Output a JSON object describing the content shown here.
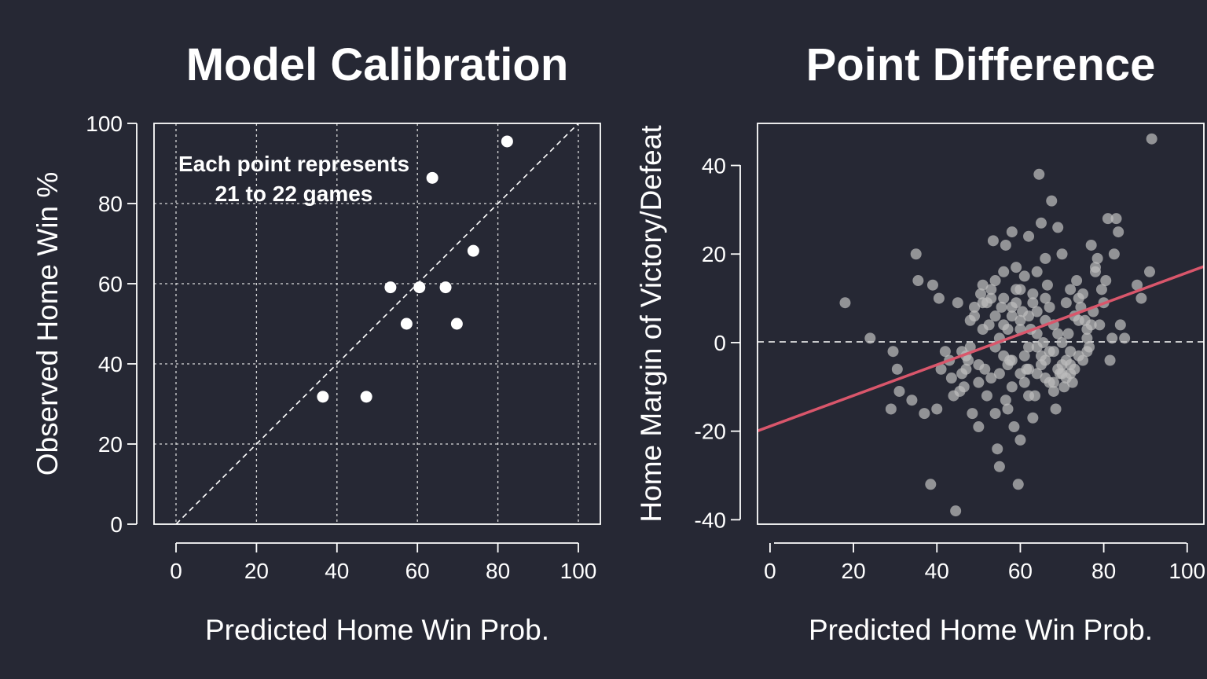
{
  "chart_data": [
    {
      "type": "scatter",
      "title": "Model Calibration",
      "xlabel": "Predicted Home Win Prob.",
      "ylabel": "Observed Home Win %",
      "xlim": [
        0,
        100
      ],
      "ylim": [
        0,
        100
      ],
      "xticks": [
        "0",
        "20",
        "40",
        "60",
        "80",
        "100"
      ],
      "yticks": [
        "0",
        "20",
        "40",
        "60",
        "80",
        "100"
      ],
      "grid": true,
      "reference_line": "y = x (dashed)",
      "annotation": [
        "Each point represents",
        "21 to 22 games"
      ],
      "points": [
        {
          "x": 36.5,
          "y": 31.8
        },
        {
          "x": 47.3,
          "y": 31.8
        },
        {
          "x": 53.3,
          "y": 59.1
        },
        {
          "x": 57.3,
          "y": 50.0
        },
        {
          "x": 60.5,
          "y": 59.1
        },
        {
          "x": 63.7,
          "y": 86.4
        },
        {
          "x": 67.0,
          "y": 59.1
        },
        {
          "x": 69.8,
          "y": 50.0
        },
        {
          "x": 73.9,
          "y": 68.2
        },
        {
          "x": 82.3,
          "y": 95.5
        }
      ],
      "colors": {
        "points": "#ffffff",
        "grid": "#d9d9d9"
      }
    },
    {
      "type": "scatter",
      "title": "Point Difference",
      "xlabel": "Predicted Home Win Prob.",
      "ylabel": "Home Margin of Victory/Defeat",
      "xlim": [
        -3,
        104
      ],
      "ylim": [
        -41,
        49.5
      ],
      "xticks": [
        "0",
        "20",
        "40",
        "60",
        "80",
        "100"
      ],
      "yticks": [
        "-40",
        "-20",
        "0",
        "20",
        "40"
      ],
      "grid": false,
      "reference_line": "y = 0 (dashed)",
      "fit_line": {
        "intercept": -18.9,
        "slope": 0.347,
        "color": "#d9566b"
      },
      "colors": {
        "points": "#bdbdbd"
      },
      "points": [
        [
          18,
          9
        ],
        [
          24,
          1
        ],
        [
          29.5,
          -2
        ],
        [
          30.5,
          -6
        ],
        [
          29,
          -15
        ],
        [
          31,
          -11
        ],
        [
          34,
          -13
        ],
        [
          35,
          20
        ],
        [
          35.5,
          14
        ],
        [
          37,
          -16
        ],
        [
          38.5,
          -32
        ],
        [
          39,
          13
        ],
        [
          40.5,
          10
        ],
        [
          40,
          -15
        ],
        [
          41,
          -6
        ],
        [
          42,
          -2
        ],
        [
          43,
          -4
        ],
        [
          43.5,
          -8
        ],
        [
          44,
          -12
        ],
        [
          44.5,
          -38
        ],
        [
          45,
          9
        ],
        [
          45.5,
          -11
        ],
        [
          46,
          -7
        ],
        [
          46.5,
          -10
        ],
        [
          47,
          -3
        ],
        [
          47.5,
          -4
        ],
        [
          48,
          -1
        ],
        [
          48.5,
          -16
        ],
        [
          49,
          8
        ],
        [
          50,
          -19
        ],
        [
          50.5,
          11
        ],
        [
          51,
          13
        ],
        [
          51.5,
          -6
        ],
        [
          52,
          -12
        ],
        [
          52.5,
          4
        ],
        [
          53,
          10
        ],
        [
          53.5,
          23
        ],
        [
          54,
          -16
        ],
        [
          54.5,
          -24
        ],
        [
          55,
          -28
        ],
        [
          55.5,
          8
        ],
        [
          56,
          16
        ],
        [
          56.5,
          22
        ],
        [
          56.5,
          -13
        ],
        [
          57,
          -15
        ],
        [
          57.5,
          -4
        ],
        [
          58,
          25
        ],
        [
          58.5,
          -19
        ],
        [
          59,
          12
        ],
        [
          59.5,
          -32
        ],
        [
          60,
          -22
        ],
        [
          60.5,
          7
        ],
        [
          61,
          -3
        ],
        [
          61.5,
          -6
        ],
        [
          62,
          24
        ],
        [
          62.5,
          3
        ],
        [
          63,
          -17
        ],
        [
          63.5,
          -12
        ],
        [
          64,
          16
        ],
        [
          64.5,
          38
        ],
        [
          65,
          27
        ],
        [
          65.5,
          0
        ],
        [
          66,
          -8
        ],
        [
          66.5,
          13
        ],
        [
          67,
          -2
        ],
        [
          67.5,
          32
        ],
        [
          68,
          4
        ],
        [
          68.5,
          -15
        ],
        [
          69,
          26
        ],
        [
          69.5,
          -7
        ],
        [
          70,
          20
        ],
        [
          70.5,
          -10
        ],
        [
          71,
          9
        ],
        [
          71.5,
          2
        ],
        [
          72,
          -5
        ],
        [
          72.5,
          -9
        ],
        [
          73,
          6
        ],
        [
          73.5,
          14
        ],
        [
          74,
          -3
        ],
        [
          74.5,
          8
        ],
        [
          75,
          11
        ],
        [
          75.5,
          5
        ],
        [
          76,
          1
        ],
        [
          76.5,
          -1
        ],
        [
          77,
          22
        ],
        [
          77.5,
          7
        ],
        [
          78,
          16
        ],
        [
          78.5,
          19
        ],
        [
          79,
          4
        ],
        [
          79.5,
          12
        ],
        [
          80,
          9
        ],
        [
          80.5,
          14
        ],
        [
          81,
          28
        ],
        [
          81.5,
          -4
        ],
        [
          82,
          1
        ],
        [
          82.5,
          20
        ],
        [
          83,
          28
        ],
        [
          83.5,
          25
        ],
        [
          84,
          4
        ],
        [
          85,
          1
        ],
        [
          88,
          13
        ],
        [
          89,
          10
        ],
        [
          91,
          16
        ],
        [
          91.5,
          46
        ],
        [
          48,
          5
        ],
        [
          49,
          6
        ],
        [
          50,
          -5
        ],
        [
          51,
          3
        ],
        [
          52,
          9
        ],
        [
          53,
          -8
        ],
        [
          54,
          6
        ],
        [
          55,
          1
        ],
        [
          56,
          -3
        ],
        [
          57,
          3
        ],
        [
          58,
          -10
        ],
        [
          59,
          17
        ],
        [
          60,
          5
        ],
        [
          61,
          15
        ],
        [
          62,
          -6
        ],
        [
          63,
          9
        ],
        [
          64,
          7
        ],
        [
          65,
          -5
        ],
        [
          66,
          10
        ],
        [
          67,
          -9
        ],
        [
          68,
          -11
        ],
        [
          69,
          -6
        ],
        [
          70,
          -5
        ],
        [
          71,
          -8
        ],
        [
          72,
          -7
        ],
        [
          73,
          -6
        ],
        [
          74,
          10
        ],
        [
          75,
          -4
        ],
        [
          76,
          3
        ],
        [
          77,
          4
        ],
        [
          78,
          17
        ],
        [
          55,
          -7
        ],
        [
          57,
          -5
        ],
        [
          58,
          6
        ],
        [
          59,
          9
        ],
        [
          60,
          3
        ],
        [
          61,
          -9
        ],
        [
          62,
          -1
        ],
        [
          63,
          11
        ],
        [
          64,
          2
        ],
        [
          65,
          -3
        ],
        [
          66,
          5
        ],
        [
          67,
          8
        ],
        [
          68,
          -2
        ],
        [
          69,
          2
        ],
        [
          70,
          -7
        ],
        [
          71,
          -4
        ],
        [
          72,
          -2
        ],
        [
          46,
          -2
        ],
        [
          47,
          -6
        ],
        [
          50,
          -9
        ],
        [
          51,
          9
        ],
        [
          53,
          12
        ],
        [
          54,
          -1
        ],
        [
          56,
          4
        ],
        [
          58,
          -4
        ],
        [
          60,
          12
        ],
        [
          62,
          -12
        ],
        [
          64,
          -7
        ],
        [
          66,
          19
        ],
        [
          68,
          -9
        ],
        [
          70,
          0
        ],
        [
          72,
          12
        ],
        [
          74,
          5
        ],
        [
          76,
          -2
        ],
        [
          54,
          14
        ],
        [
          56,
          10
        ],
        [
          58,
          8
        ],
        [
          60,
          -7
        ],
        [
          62,
          6
        ],
        [
          64,
          -1
        ],
        [
          66,
          -4
        ]
      ]
    }
  ]
}
